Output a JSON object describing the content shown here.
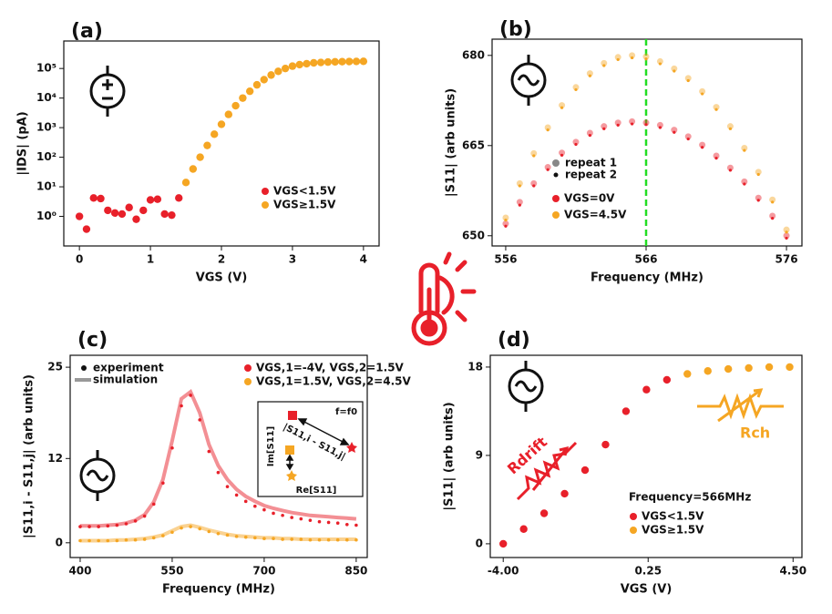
{
  "chart_data": [
    {
      "type": "scatter",
      "panel_label": "(a)",
      "xlabel": "VGS (V)",
      "ylabel": "|IDS| (pA)",
      "xlim": [
        -0.22,
        4.22
      ],
      "xticks": [
        0,
        1,
        2,
        3,
        4
      ],
      "ylim": [
        0.1,
        850000
      ],
      "yscale": "log",
      "yticks": [
        {
          "value": 1,
          "label": "10⁰"
        },
        {
          "value": 10,
          "label": "10¹"
        },
        {
          "value": 100,
          "label": "10²"
        },
        {
          "value": 1000,
          "label": "10³"
        },
        {
          "value": 10000,
          "label": "10⁴"
        },
        {
          "value": 100000,
          "label": "10⁵"
        }
      ],
      "legend": "lower right",
      "series": [
        {
          "name": "VGS<1.5V",
          "color": "#e8202a",
          "x": [
            0,
            0.1,
            0.2,
            0.3,
            0.4,
            0.5,
            0.6,
            0.7,
            0.8,
            0.9,
            1.0,
            1.1,
            1.2,
            1.3,
            1.4
          ],
          "values": [
            1.0,
            0.37,
            4.2,
            4.0,
            1.6,
            1.3,
            1.2,
            2.0,
            0.8,
            1.6,
            3.6,
            3.8,
            1.2,
            1.1,
            4.2
          ]
        },
        {
          "name": "VGS≥1.5V",
          "color": "#f5a623",
          "x": [
            1.5,
            1.6,
            1.7,
            1.8,
            1.9,
            2.0,
            2.1,
            2.2,
            2.3,
            2.4,
            2.5,
            2.6,
            2.7,
            2.8,
            2.9,
            3.0,
            3.1,
            3.2,
            3.3,
            3.4,
            3.5,
            3.6,
            3.7,
            3.8,
            3.9,
            4.0
          ],
          "values": [
            14,
            40,
            100,
            250,
            600,
            1300,
            2800,
            5500,
            10000,
            17000,
            28000,
            42000,
            60000,
            80000,
            100000,
            120000,
            135000,
            145000,
            155000,
            160000,
            165000,
            168000,
            170000,
            172000,
            173000,
            175000
          ]
        }
      ]
    },
    {
      "type": "scatter",
      "panel_label": "(b)",
      "xlabel": "Frequency (MHz)",
      "ylabel": "|S11| (arb units)",
      "xlim": [
        555.03,
        577.1
      ],
      "xticks": [
        556,
        566,
        576
      ],
      "ylim": [
        648.3,
        682.7
      ],
      "yticks": [
        650,
        665,
        680
      ],
      "vline": 566,
      "vline_color": "#22dd22",
      "legend": "lower left",
      "key_legend": [
        {
          "name": "repeat 1",
          "color": "#888888"
        },
        {
          "name": "repeat 2",
          "color": "#111111"
        }
      ],
      "x": [
        556,
        557,
        558,
        559,
        560,
        561,
        562,
        563,
        564,
        565,
        566,
        567,
        568,
        569,
        570,
        571,
        572,
        573,
        574,
        575,
        576
      ],
      "series": [
        {
          "name": "VGS=0V",
          "color": "#e8202a",
          "repeats": [
            [
              652.0,
              655.6,
              658.7,
              661.4,
              663.8,
              665.6,
              667.1,
              668.2,
              668.8,
              669.0,
              668.8,
              668.4,
              667.6,
              666.5,
              665.1,
              663.3,
              661.3,
              659.0,
              656.3,
              653.3,
              650.0
            ],
            [
              651.6,
              655.1,
              658.3,
              661.0,
              663.4,
              665.2,
              666.7,
              667.8,
              668.4,
              668.6,
              668.5,
              668.0,
              667.2,
              666.1,
              664.7,
              662.9,
              660.9,
              658.6,
              655.9,
              652.9,
              649.6
            ]
          ]
        },
        {
          "name": "VGS=4.5V",
          "color": "#f5a623",
          "repeats": [
            [
              653.0,
              658.7,
              663.7,
              668.0,
              671.7,
              674.7,
              677.0,
              678.7,
              679.7,
              680.0,
              679.8,
              679.0,
              677.8,
              676.2,
              674.0,
              671.4,
              668.2,
              664.6,
              660.6,
              656.0,
              651.0
            ],
            [
              652.6,
              658.3,
              663.3,
              667.6,
              671.3,
              674.3,
              676.6,
              678.3,
              679.3,
              679.6,
              679.4,
              678.6,
              677.4,
              675.8,
              673.6,
              671.0,
              667.8,
              664.2,
              660.2,
              655.6,
              650.6
            ]
          ]
        }
      ]
    },
    {
      "type": "line",
      "panel_label": "(c)",
      "xlabel": "Frequency (MHz)",
      "ylabel": "|S11,i - S11,j| (arb units)",
      "xlim": [
        383.7,
        868
      ],
      "xticks": [
        400,
        550,
        700,
        850
      ],
      "ylim": [
        -2.1,
        26.7
      ],
      "yticks": [
        0,
        12,
        25
      ],
      "legend": "upper left",
      "key_legend": [
        {
          "name": "experiment",
          "color": "#111111"
        },
        {
          "name": "simulation",
          "color": "#999999"
        }
      ],
      "inset": {
        "title": "f=f0",
        "xlabel": "Re[S11]",
        "ylabel": "Im[S11]",
        "annotation": "|S11,i - S11,j|"
      },
      "x": [
        400,
        415,
        430,
        445,
        460,
        475,
        490,
        505,
        520,
        535,
        550,
        565,
        580,
        595,
        610,
        625,
        640,
        655,
        670,
        685,
        700,
        715,
        730,
        745,
        760,
        775,
        790,
        805,
        820,
        835,
        850
      ],
      "series": [
        {
          "name": "VGS,1=-4V, VGS,2=1.5V",
          "color": "#e8202a",
          "experiment": [
            2.3,
            2.3,
            2.3,
            2.4,
            2.5,
            2.7,
            3.1,
            3.8,
            5.5,
            8.5,
            13.5,
            19.5,
            21.0,
            17.5,
            13.0,
            10.0,
            8.0,
            6.8,
            5.9,
            5.2,
            4.7,
            4.2,
            3.9,
            3.6,
            3.4,
            3.2,
            3.0,
            2.9,
            2.8,
            2.6,
            2.5
          ],
          "simulation": [
            2.4,
            2.4,
            2.4,
            2.5,
            2.6,
            2.8,
            3.2,
            4.0,
            5.8,
            9.0,
            14.5,
            20.5,
            21.5,
            18.5,
            14.0,
            11.0,
            9.0,
            7.6,
            6.6,
            5.9,
            5.3,
            4.9,
            4.6,
            4.3,
            4.1,
            3.9,
            3.8,
            3.7,
            3.6,
            3.5,
            3.4
          ]
        },
        {
          "name": "VGS,1=1.5V, VGS,2=4.5V",
          "color": "#f5a623",
          "experiment": [
            0.3,
            0.3,
            0.3,
            0.3,
            0.3,
            0.4,
            0.4,
            0.5,
            0.7,
            1.0,
            1.5,
            2.1,
            2.3,
            2.0,
            1.6,
            1.3,
            1.1,
            0.9,
            0.8,
            0.7,
            0.6,
            0.6,
            0.5,
            0.5,
            0.5,
            0.4,
            0.4,
            0.4,
            0.4,
            0.4,
            0.4
          ],
          "simulation": [
            0.3,
            0.3,
            0.3,
            0.3,
            0.4,
            0.4,
            0.5,
            0.6,
            0.8,
            1.1,
            1.7,
            2.3,
            2.5,
            2.2,
            1.8,
            1.5,
            1.2,
            1.0,
            0.9,
            0.8,
            0.7,
            0.7,
            0.6,
            0.6,
            0.5,
            0.5,
            0.5,
            0.5,
            0.5,
            0.5,
            0.5
          ]
        }
      ]
    },
    {
      "type": "scatter",
      "panel_label": "(d)",
      "xlabel": "VGS (V)",
      "ylabel": "|S11| (arb units)",
      "xlim": [
        -4.38,
        4.76
      ],
      "xticks": [
        {
          "value": -4,
          "label": "-4.00"
        },
        0.25,
        {
          "value": 4.5,
          "label": "4.50"
        }
      ],
      "ylim": [
        -1.4,
        19.2
      ],
      "yticks": [
        0,
        9,
        18
      ],
      "legend": "lower right",
      "annotations": [
        {
          "text": "Rdrift",
          "color": "#e8202a"
        },
        {
          "text": "Rch",
          "color": "#f5a623"
        },
        {
          "text": "Frequency=566MHz",
          "color": "#111111"
        }
      ],
      "series": [
        {
          "name": "VGS<1.5V",
          "color": "#e8202a",
          "x": [
            -4.0,
            -3.4,
            -2.8,
            -2.2,
            -1.6,
            -1.0,
            -0.4,
            0.2,
            0.8
          ],
          "values": [
            0,
            1.5,
            3.1,
            5.1,
            7.5,
            10.1,
            13.5,
            15.7,
            16.7
          ]
        },
        {
          "name": "VGS≥1.5V",
          "color": "#f5a623",
          "x": [
            1.4,
            2.0,
            2.6,
            3.2,
            3.8,
            4.4
          ],
          "values": [
            17.3,
            17.6,
            17.8,
            17.9,
            18.0,
            18.0
          ]
        }
      ]
    }
  ]
}
